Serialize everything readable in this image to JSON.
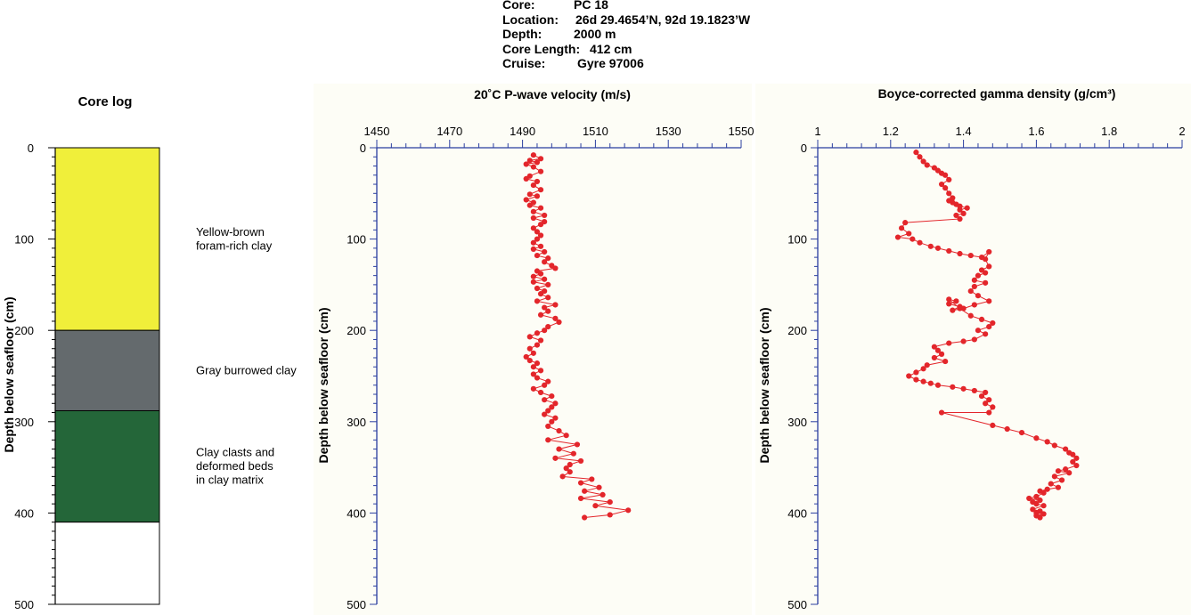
{
  "header": {
    "core_label": "Core:",
    "core_value": "PC 18",
    "location_label": "Location:",
    "location_value": "26d 29.4654’N, 92d 19.1823’W",
    "depth_label": "Depth:",
    "depth_value": "2000 m",
    "length_label": "Core Length:",
    "length_value": "412 cm",
    "cruise_label": "Cruise:",
    "cruise_value": "Gyre 97006"
  },
  "colors": {
    "yellow_unit": "#f0ef3a",
    "gray_unit": "#646a6d",
    "green_unit": "#246639",
    "data_red": "#e3262b",
    "axis_blue": "#2a3ea0",
    "plot_bg": "#fdfdf6"
  },
  "chart_data": [
    {
      "type": "table",
      "title": "Core log",
      "ylabel": "Depth below seafloor (cm)",
      "ylim": [
        0,
        500
      ],
      "yticks": [
        0,
        100,
        200,
        300,
        400,
        500
      ],
      "units": [
        {
          "top": 0,
          "bottom": 200,
          "color": "#f0ef3a",
          "label": [
            "Yellow-brown",
            "foram-rich clay"
          ]
        },
        {
          "top": 200,
          "bottom": 288,
          "color": "#646a6d",
          "label": [
            "Gray burrowed clay"
          ]
        },
        {
          "top": 288,
          "bottom": 410,
          "color": "#246639",
          "label": [
            "Clay clasts and",
            "deformed beds",
            "in clay matrix"
          ]
        },
        {
          "top": 410,
          "bottom": 500,
          "color": "#ffffff",
          "label": []
        }
      ]
    },
    {
      "type": "line",
      "title": "20˚C P-wave velocity (m/s)",
      "ylabel": "Depth below seafloor (cm)",
      "xlim": [
        1450,
        1550
      ],
      "xticks": [
        1450,
        1470,
        1490,
        1510,
        1530,
        1550
      ],
      "ylim": [
        0,
        500
      ],
      "yticks": [
        0,
        100,
        200,
        300,
        400,
        500
      ],
      "x": [
        1493,
        1495,
        1492,
        1494,
        1491,
        1493,
        1495,
        1492,
        1491,
        1494,
        1493,
        1495,
        1492,
        1494,
        1491,
        1493,
        1492,
        1495,
        1493,
        1496,
        1493,
        1496,
        1495,
        1493,
        1494,
        1495,
        1494,
        1493,
        1495,
        1493,
        1496,
        1494,
        1497,
        1496,
        1498,
        1499,
        1494,
        1495,
        1493,
        1496,
        1493,
        1497,
        1494,
        1496,
        1495,
        1497,
        1494,
        1499,
        1496,
        1497,
        1495,
        1499,
        1500,
        1497,
        1496,
        1494,
        1492,
        1495,
        1494,
        1492,
        1493,
        1491,
        1492,
        1494,
        1493,
        1495,
        1493,
        1494,
        1497,
        1496,
        1493,
        1495,
        1498,
        1496,
        1499,
        1498,
        1497,
        1496,
        1499,
        1498,
        1497,
        1500,
        1502,
        1497,
        1505,
        1500,
        1504,
        1499,
        1506,
        1503,
        1502,
        1503,
        1501,
        1509,
        1506,
        1511,
        1507,
        1512,
        1506,
        1514,
        1510,
        1519,
        1514,
        1507
      ],
      "y": [
        8,
        12,
        14,
        16,
        18,
        21,
        26,
        31,
        34,
        37,
        41,
        46,
        51,
        53,
        57,
        60,
        63,
        66,
        70,
        74,
        77,
        81,
        84,
        88,
        92,
        96,
        100,
        104,
        108,
        111,
        114,
        118,
        121,
        125,
        129,
        132,
        135,
        138,
        141,
        144,
        147,
        150,
        154,
        157,
        160,
        164,
        168,
        172,
        175,
        179,
        183,
        187,
        191,
        196,
        200,
        203,
        207,
        211,
        216,
        220,
        225,
        229,
        233,
        236,
        240,
        244,
        248,
        252,
        256,
        260,
        264,
        268,
        272,
        276,
        280,
        284,
        288,
        292,
        296,
        300,
        305,
        310,
        315,
        320,
        325,
        330,
        335,
        340,
        343,
        347,
        351,
        355,
        360,
        363,
        367,
        372,
        376,
        380,
        384,
        388,
        392,
        397,
        402,
        405
      ]
    },
    {
      "type": "line",
      "title": "Boyce-corrected gamma density (g/cm³)",
      "ylabel": "Depth below seafloor (cm)",
      "xlim": [
        1,
        2
      ],
      "xticks": [
        1,
        1.2,
        1.4,
        1.6,
        1.8,
        2
      ],
      "ylim": [
        0,
        500
      ],
      "yticks": [
        0,
        100,
        200,
        300,
        400,
        500
      ],
      "x": [
        1.27,
        1.28,
        1.29,
        1.3,
        1.32,
        1.33,
        1.34,
        1.35,
        1.36,
        1.34,
        1.35,
        1.36,
        1.37,
        1.36,
        1.37,
        1.38,
        1.39,
        1.41,
        1.39,
        1.4,
        1.38,
        1.39,
        1.24,
        1.23,
        1.25,
        1.22,
        1.26,
        1.28,
        1.31,
        1.33,
        1.36,
        1.39,
        1.42,
        1.45,
        1.47,
        1.46,
        1.47,
        1.45,
        1.46,
        1.44,
        1.43,
        1.46,
        1.43,
        1.42,
        1.44,
        1.47,
        1.43,
        1.4,
        1.37,
        1.39,
        1.36,
        1.38,
        1.36,
        1.39,
        1.42,
        1.45,
        1.48,
        1.47,
        1.44,
        1.46,
        1.43,
        1.4,
        1.36,
        1.32,
        1.33,
        1.34,
        1.32,
        1.35,
        1.3,
        1.29,
        1.27,
        1.25,
        1.27,
        1.29,
        1.31,
        1.33,
        1.37,
        1.4,
        1.43,
        1.46,
        1.45,
        1.47,
        1.46,
        1.48,
        1.47,
        1.34,
        1.48,
        1.52,
        1.56,
        1.6,
        1.63,
        1.65,
        1.68,
        1.69,
        1.7,
        1.71,
        1.7,
        1.71,
        1.68,
        1.66,
        1.69,
        1.65,
        1.67,
        1.64,
        1.66,
        1.63,
        1.61,
        1.62,
        1.6,
        1.58,
        1.61,
        1.59,
        1.6,
        1.62,
        1.59,
        1.61,
        1.6,
        1.62,
        1.6,
        1.61
      ],
      "y": [
        5,
        10,
        15,
        19,
        22,
        25,
        28,
        30,
        35,
        40,
        44,
        50,
        55,
        58,
        60,
        62,
        64,
        66,
        68,
        72,
        74,
        78,
        82,
        88,
        94,
        98,
        100,
        104,
        108,
        110,
        113,
        116,
        118,
        120,
        114,
        122,
        130,
        134,
        137,
        140,
        145,
        148,
        152,
        157,
        162,
        168,
        172,
        176,
        178,
        174,
        171,
        168,
        166,
        176,
        184,
        188,
        192,
        196,
        200,
        204,
        210,
        212,
        214,
        218,
        222,
        226,
        230,
        234,
        238,
        242,
        246,
        250,
        254,
        256,
        258,
        260,
        262,
        264,
        266,
        268,
        272,
        276,
        280,
        284,
        290,
        290,
        304,
        308,
        312,
        318,
        322,
        326,
        330,
        334,
        336,
        340,
        344,
        348,
        352,
        354,
        356,
        360,
        364,
        368,
        372,
        374,
        376,
        378,
        382,
        384,
        386,
        388,
        390,
        392,
        396,
        398,
        400,
        401,
        403,
        405
      ]
    }
  ]
}
